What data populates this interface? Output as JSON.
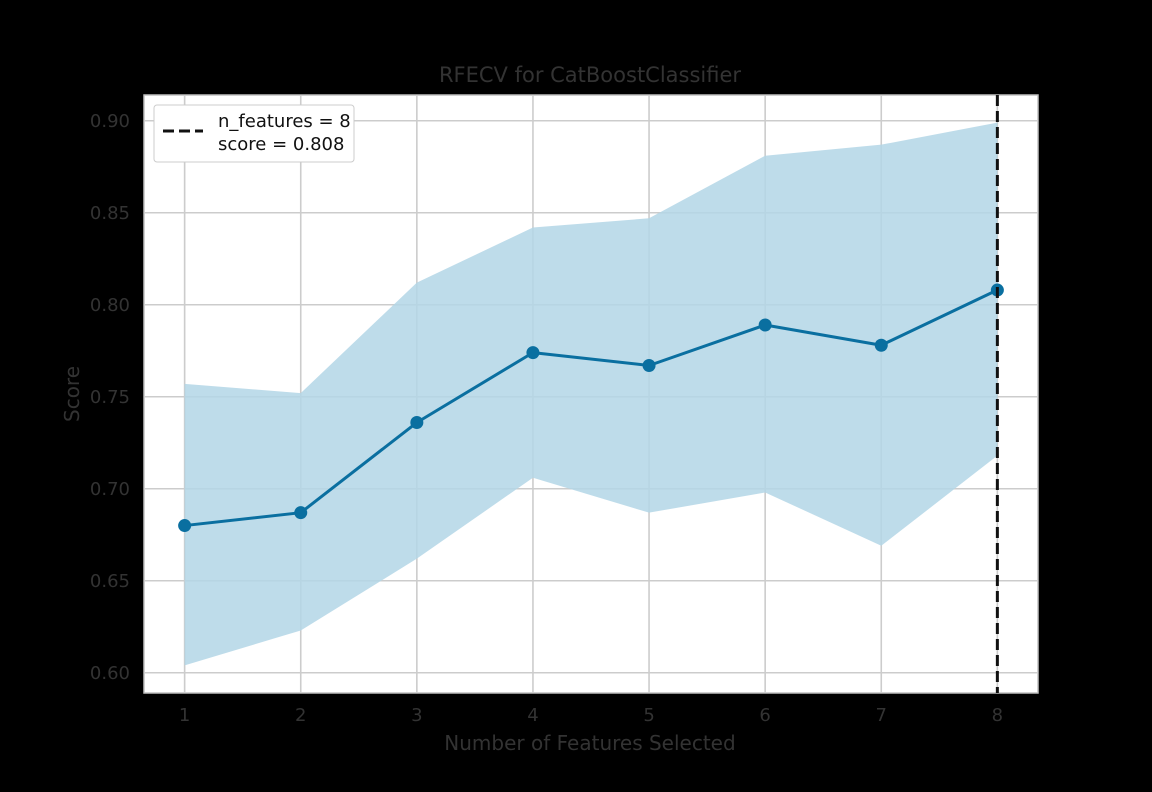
{
  "chart_data": {
    "type": "line",
    "title": "RFECV for CatBoostClassifier",
    "xlabel": "Number of Features Selected",
    "ylabel": "Score",
    "x": [
      1,
      2,
      3,
      4,
      5,
      6,
      7,
      8
    ],
    "series": [
      {
        "values": [
          0.68,
          0.687,
          0.736,
          0.774,
          0.767,
          0.789,
          0.778,
          0.808
        ],
        "upper": [
          0.757,
          0.752,
          0.812,
          0.842,
          0.847,
          0.881,
          0.887,
          0.899
        ],
        "lower": [
          0.604,
          0.623,
          0.662,
          0.706,
          0.687,
          0.698,
          0.669,
          0.718
        ],
        "color": "#0a6fa0",
        "band_color": "#b3d6e6"
      }
    ],
    "xlim": [
      0.65,
      8.35
    ],
    "ylim": [
      0.589,
      0.914
    ],
    "xticks": [
      1,
      2,
      3,
      4,
      5,
      6,
      7,
      8
    ],
    "yticks": [
      0.6,
      0.65,
      0.7,
      0.75,
      0.8,
      0.85,
      0.9
    ],
    "ytick_labels": [
      "0.60",
      "0.65",
      "0.70",
      "0.75",
      "0.80",
      "0.85",
      "0.90"
    ],
    "grid": true,
    "vline": {
      "x": 8,
      "color": "#111111",
      "style": "dashed"
    },
    "legend": {
      "position": "top-left",
      "lines": [
        "n_features = 8",
        "score = 0.808"
      ]
    }
  }
}
